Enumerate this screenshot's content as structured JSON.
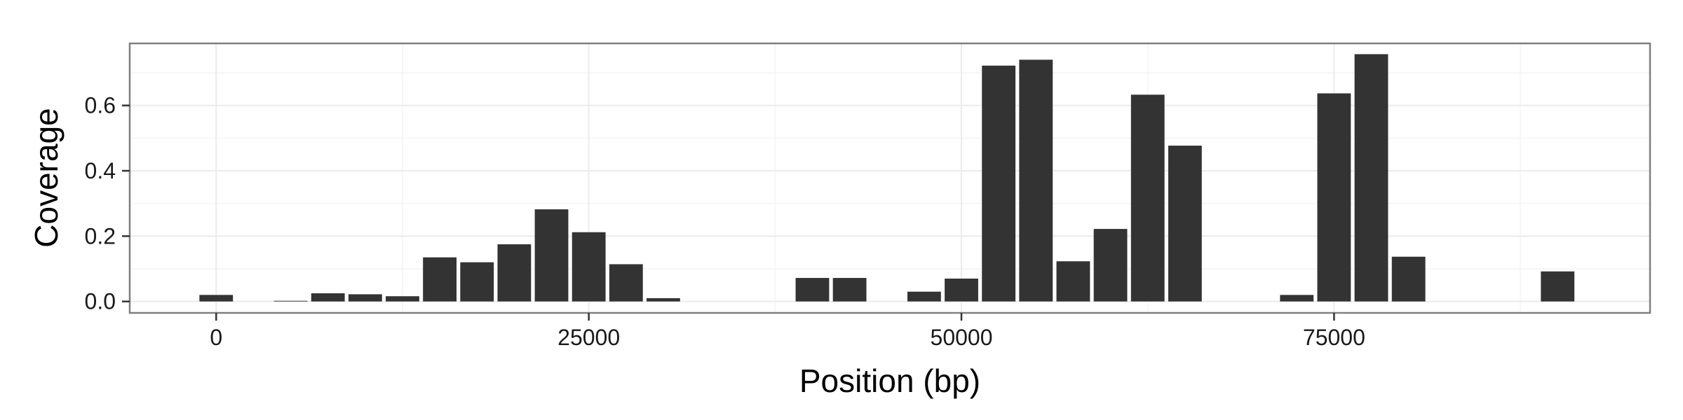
{
  "chart_data": {
    "type": "bar",
    "title": "",
    "xlabel": "Position (bp)",
    "ylabel": "Coverage",
    "xlim": [
      -5800,
      96200
    ],
    "ylim": [
      -0.035,
      0.79
    ],
    "x_ticks": [
      0,
      25000,
      50000,
      75000
    ],
    "x_tick_labels": [
      "0",
      "25000",
      "50000",
      "75000"
    ],
    "y_ticks": [
      0.0,
      0.2,
      0.4,
      0.6
    ],
    "y_tick_labels": [
      "0.0",
      "0.2",
      "0.4",
      "0.6"
    ],
    "bin_width": 2500,
    "grid": true,
    "bar_color": "#333333",
    "panel_border_color": "#7f7f7f",
    "grid_major_color": "#ebebeb",
    "grid_minor_color": "#f4f4f4",
    "x": [
      0,
      5000,
      7500,
      10000,
      12500,
      15000,
      17500,
      20000,
      22500,
      25000,
      27500,
      30000,
      40000,
      42500,
      47500,
      50000,
      52500,
      55000,
      57500,
      60000,
      62500,
      65000,
      72500,
      75000,
      77500,
      80000,
      90000
    ],
    "values": [
      0.02,
      0.002,
      0.025,
      0.022,
      0.016,
      0.135,
      0.12,
      0.175,
      0.282,
      0.212,
      0.114,
      0.01,
      0.072,
      0.072,
      0.03,
      0.07,
      0.722,
      0.74,
      0.123,
      0.222,
      0.633,
      0.477,
      0.02,
      0.637,
      0.757,
      0.137,
      0.092
    ]
  }
}
